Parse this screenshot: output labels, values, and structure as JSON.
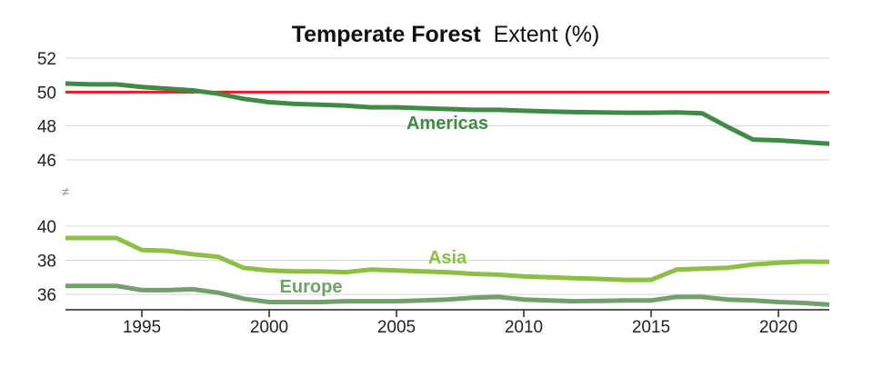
{
  "chart_data": {
    "type": "line",
    "title": {
      "bold": "Temperate Forest",
      "light": "Extent (%)"
    },
    "xlabel": "",
    "ylabel": "",
    "x": [
      1992,
      1993,
      1994,
      1995,
      1996,
      1997,
      1998,
      1999,
      2000,
      2001,
      2002,
      2003,
      2004,
      2005,
      2006,
      2007,
      2008,
      2009,
      2010,
      2011,
      2012,
      2013,
      2014,
      2015,
      2016,
      2017,
      2018,
      2019,
      2020,
      2021,
      2022
    ],
    "xlim": [
      1992,
      2022
    ],
    "x_ticks": [
      1995,
      2000,
      2005,
      2010,
      2015,
      2020
    ],
    "axis_break": "≠",
    "upper_panel": {
      "ylim": [
        44.5,
        52
      ],
      "y_ticks": [
        52,
        50,
        48,
        46
      ]
    },
    "lower_panel": {
      "ylim": [
        35.1,
        41
      ],
      "y_ticks": [
        40,
        38,
        36
      ]
    },
    "reference_line": {
      "value": 50,
      "color": "#ee1c1c",
      "panel": "upper"
    },
    "series": [
      {
        "name": "Americas",
        "panel": "upper",
        "color": "#3f8a45",
        "values": [
          50.5,
          50.45,
          50.45,
          50.3,
          50.2,
          50.1,
          49.9,
          49.6,
          49.4,
          49.3,
          49.25,
          49.2,
          49.1,
          49.1,
          49.05,
          49.0,
          48.95,
          48.95,
          48.9,
          48.85,
          48.82,
          48.8,
          48.78,
          48.78,
          48.8,
          48.75,
          47.95,
          47.2,
          47.15,
          47.05,
          46.95
        ]
      },
      {
        "name": "Asia",
        "panel": "lower",
        "color": "#8cbf44",
        "values": [
          39.3,
          39.3,
          39.3,
          38.6,
          38.55,
          38.35,
          38.2,
          37.55,
          37.4,
          37.35,
          37.35,
          37.3,
          37.45,
          37.4,
          37.35,
          37.3,
          37.2,
          37.15,
          37.05,
          37.0,
          36.95,
          36.9,
          36.85,
          36.85,
          37.45,
          37.5,
          37.55,
          37.75,
          37.85,
          37.92,
          37.9
        ]
      },
      {
        "name": "Europe",
        "panel": "lower",
        "color": "#72a06a",
        "values": [
          36.5,
          36.5,
          36.5,
          36.25,
          36.25,
          36.3,
          36.1,
          35.75,
          35.55,
          35.55,
          35.55,
          35.6,
          35.6,
          35.6,
          35.65,
          35.7,
          35.8,
          35.85,
          35.7,
          35.65,
          35.6,
          35.62,
          35.65,
          35.65,
          35.85,
          35.85,
          35.7,
          35.65,
          35.55,
          35.5,
          35.4
        ]
      }
    ]
  }
}
